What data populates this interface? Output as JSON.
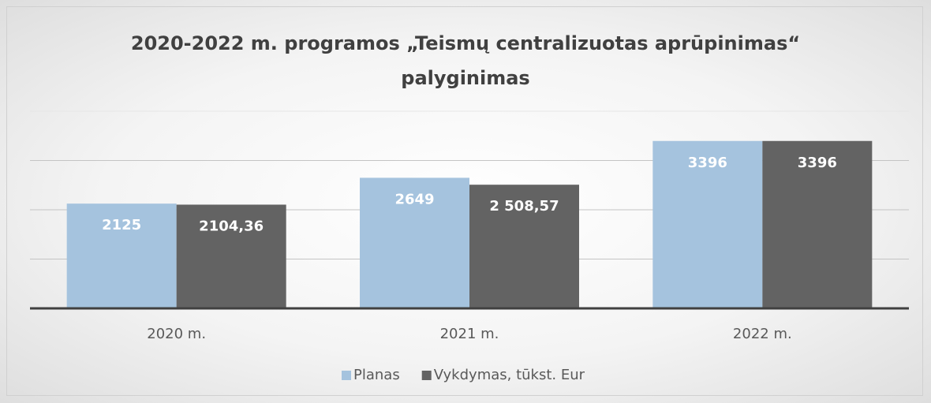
{
  "chart_data": {
    "type": "bar",
    "title": "2020-2022 m. programos „Teismų centralizuotas aprūpinimas“ palyginimas",
    "categories": [
      "2020 m.",
      "2021 m.",
      "2022 m."
    ],
    "series": [
      {
        "name": "Planas",
        "color": "#a5c3de",
        "values": [
          2125,
          2649,
          3396
        ]
      },
      {
        "name": "Vykdymas, tūkst. Eur",
        "color": "#636363",
        "values": [
          2104.36,
          2508.57,
          3396
        ],
        "value_labels": [
          "2104,36",
          "2 508,57",
          "3396"
        ]
      }
    ],
    "ylim": [
      0,
      4000
    ],
    "yticks": [
      0,
      1000,
      2000,
      3000,
      4000
    ],
    "grid": true,
    "legend": "bottom"
  }
}
